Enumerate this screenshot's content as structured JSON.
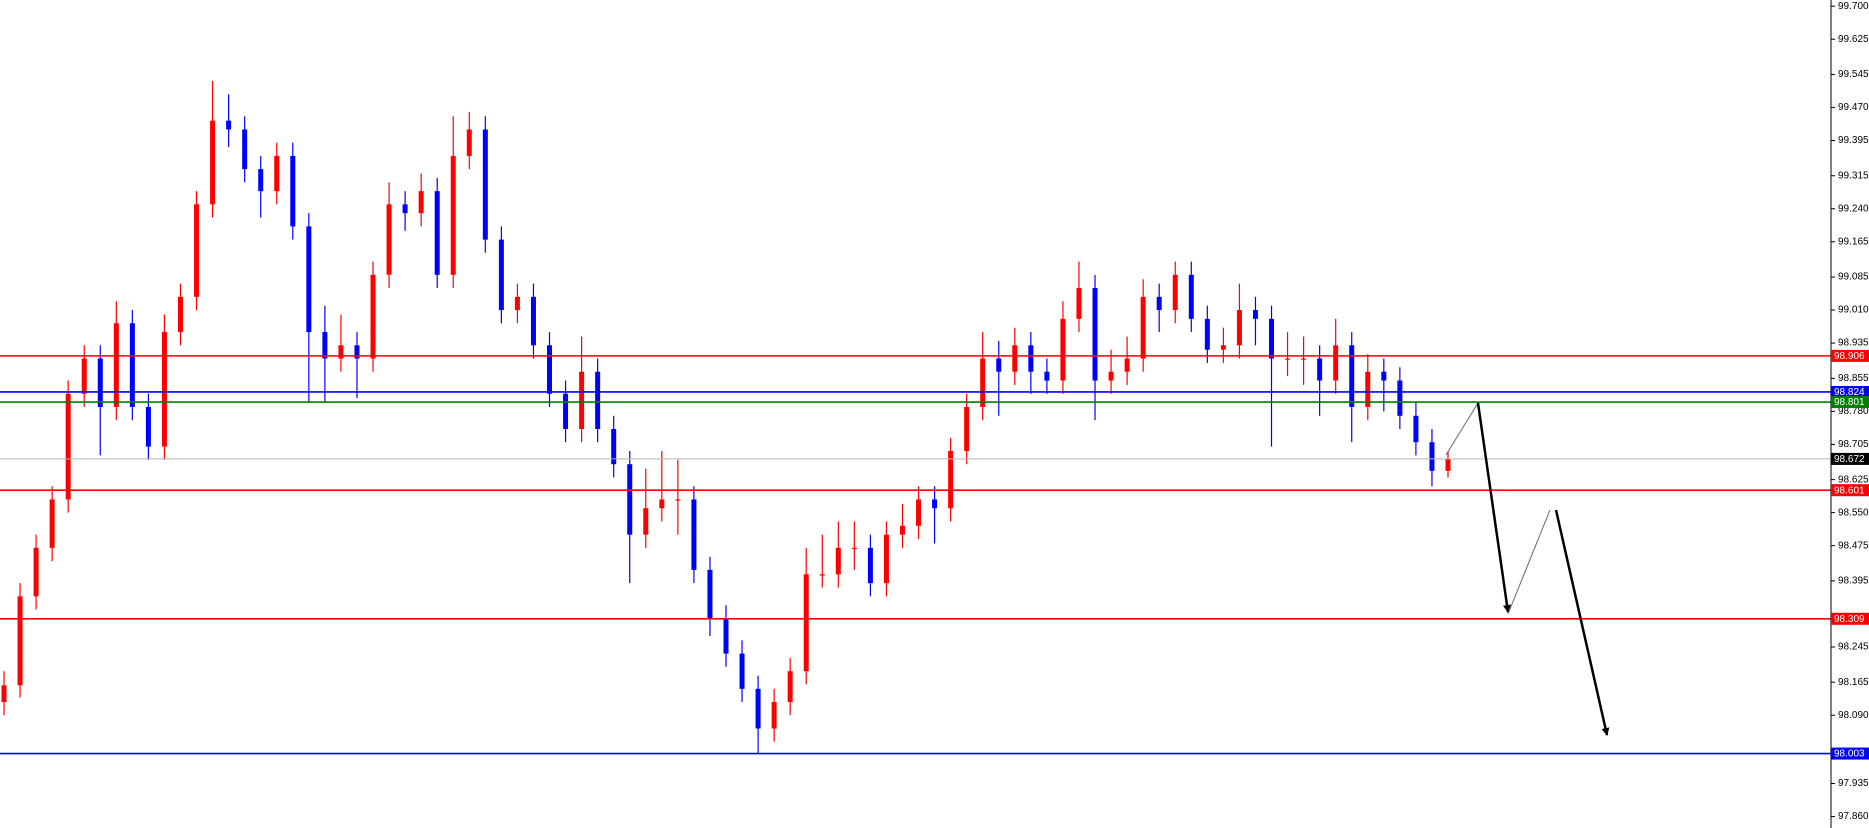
{
  "chart_data": {
    "type": "candlestick",
    "up_color": "#ff0000",
    "down_color": "#0000ff",
    "ylim": [
      97.834,
      99.714
    ],
    "yticks": [
      {
        "value": 99.7,
        "label": "99.700"
      },
      99.625,
      99.545,
      {
        "value": 99.47,
        "label": "99.470"
      },
      99.395,
      99.315,
      {
        "value": 99.24,
        "label": "99.240"
      },
      99.165,
      99.085,
      {
        "value": 99.01,
        "label": "99.010"
      },
      98.935,
      98.855,
      {
        "value": 98.78,
        "label": "98.780"
      },
      98.705,
      98.625,
      {
        "value": 98.55,
        "label": "98.550"
      },
      98.475,
      98.395,
      98.245,
      98.165,
      {
        "value": 98.09,
        "label": "98.090"
      },
      97.935,
      {
        "value": 97.86,
        "label": "97.860"
      }
    ],
    "levels": [
      {
        "value": 98.906,
        "color": "#ff0000"
      },
      {
        "value": 98.824,
        "color": "#0000ff"
      },
      {
        "value": 98.801,
        "color": "#008000"
      },
      {
        "value": 98.672,
        "color": "#000000"
      },
      {
        "value": 98.601,
        "color": "#ff0000"
      },
      {
        "value": 98.309,
        "color": "#ff0000"
      },
      {
        "value": 98.003,
        "color": "#0000ff"
      }
    ],
    "open": [
      98.12,
      98.158,
      98.36,
      98.47,
      98.58,
      98.82,
      98.9,
      98.79,
      98.98,
      98.79,
      98.7,
      98.96,
      99.04,
      99.25,
      99.44,
      99.42,
      99.33,
      99.28,
      99.36,
      99.2,
      98.96,
      98.9,
      98.93,
      98.9,
      99.09,
      99.25,
      99.23,
      99.28,
      99.09,
      99.36,
      99.42,
      99.17,
      99.01,
      99.04,
      98.93,
      98.82,
      98.74,
      98.87,
      98.74,
      98.66,
      98.5,
      98.56,
      98.58,
      98.58,
      98.42,
      98.31,
      98.23,
      98.15,
      98.06,
      98.12,
      98.19,
      98.41,
      98.41,
      98.47,
      98.47,
      98.39,
      98.5,
      98.52,
      98.58,
      98.56,
      98.69,
      98.79,
      98.9,
      98.87,
      98.93,
      98.87,
      98.85,
      98.99,
      99.06,
      98.85,
      98.87,
      98.9,
      99.04,
      99.01,
      99.09,
      98.99,
      98.92,
      98.93,
      99.01,
      98.99,
      98.9,
      98.9,
      98.9,
      98.85,
      98.93,
      98.79,
      98.87,
      98.85,
      98.77,
      98.71,
      98.645
    ],
    "high": [
      98.19,
      98.39,
      98.5,
      98.61,
      98.85,
      98.93,
      98.93,
      99.03,
      99.01,
      98.82,
      99.0,
      99.07,
      99.28,
      99.53,
      99.5,
      99.45,
      99.36,
      99.39,
      99.39,
      99.23,
      99.02,
      99.0,
      98.96,
      99.12,
      99.3,
      99.28,
      99.32,
      99.31,
      99.45,
      99.46,
      99.45,
      99.2,
      99.07,
      99.07,
      98.96,
      98.85,
      98.95,
      98.9,
      98.77,
      98.69,
      98.65,
      98.69,
      98.67,
      98.61,
      98.45,
      98.34,
      98.26,
      98.18,
      98.15,
      98.22,
      98.47,
      98.5,
      98.53,
      98.53,
      98.5,
      98.53,
      98.57,
      98.61,
      98.61,
      98.72,
      98.82,
      98.96,
      98.94,
      98.97,
      98.96,
      98.9,
      99.03,
      99.12,
      99.09,
      98.92,
      98.95,
      99.08,
      99.07,
      99.12,
      99.12,
      99.02,
      98.97,
      99.07,
      99.04,
      99.02,
      98.96,
      98.95,
      98.93,
      98.99,
      98.96,
      98.91,
      98.9,
      98.88,
      98.8,
      98.74,
      98.69
    ],
    "low": [
      98.09,
      98.13,
      98.33,
      98.44,
      98.55,
      98.79,
      98.68,
      98.76,
      98.76,
      98.67,
      98.67,
      98.93,
      99.01,
      99.22,
      99.38,
      99.3,
      99.22,
      99.25,
      99.17,
      98.8,
      98.8,
      98.87,
      98.81,
      98.87,
      99.06,
      99.19,
      99.2,
      99.06,
      99.06,
      99.33,
      99.14,
      98.98,
      98.98,
      98.9,
      98.79,
      98.71,
      98.71,
      98.71,
      98.63,
      98.39,
      98.47,
      98.53,
      98.5,
      98.39,
      98.27,
      98.2,
      98.12,
      98.003,
      98.03,
      98.09,
      98.16,
      98.38,
      98.38,
      98.42,
      98.36,
      98.36,
      98.47,
      98.49,
      98.48,
      98.53,
      98.66,
      98.76,
      98.77,
      98.84,
      98.82,
      98.82,
      98.82,
      98.96,
      98.76,
      98.82,
      98.84,
      98.87,
      98.96,
      98.98,
      98.96,
      98.89,
      98.89,
      98.9,
      98.93,
      98.7,
      98.86,
      98.84,
      98.77,
      98.82,
      98.71,
      98.76,
      98.78,
      98.74,
      98.68,
      98.61,
      98.63
    ],
    "close": [
      98.158,
      98.36,
      98.47,
      98.58,
      98.82,
      98.9,
      98.79,
      98.98,
      98.79,
      98.7,
      98.96,
      99.04,
      99.25,
      99.44,
      99.42,
      99.33,
      99.28,
      99.36,
      99.2,
      98.96,
      98.9,
      98.93,
      98.9,
      99.09,
      99.25,
      99.23,
      99.28,
      99.09,
      99.36,
      99.42,
      99.17,
      99.01,
      99.04,
      98.93,
      98.82,
      98.74,
      98.87,
      98.74,
      98.66,
      98.5,
      98.56,
      98.58,
      98.58,
      98.42,
      98.31,
      98.23,
      98.15,
      98.06,
      98.12,
      98.19,
      98.41,
      98.41,
      98.47,
      98.47,
      98.39,
      98.5,
      98.52,
      98.58,
      98.56,
      98.69,
      98.79,
      98.9,
      98.87,
      98.93,
      98.87,
      98.85,
      98.99,
      99.06,
      98.85,
      98.87,
      98.9,
      99.04,
      99.01,
      99.09,
      98.99,
      98.92,
      98.93,
      99.01,
      98.99,
      98.9,
      98.9,
      98.9,
      98.85,
      98.93,
      98.79,
      98.87,
      98.85,
      98.77,
      98.71,
      98.645,
      98.672
    ]
  }
}
